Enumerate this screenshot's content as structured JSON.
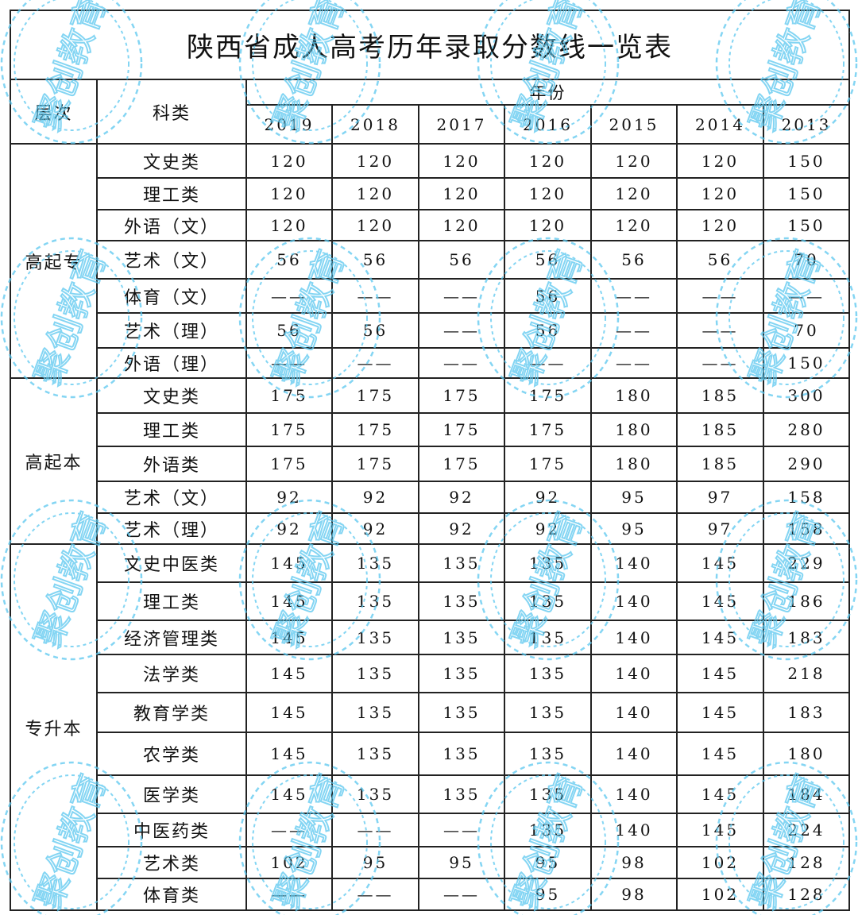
{
  "title": "陕西省成人高考历年录取分数线一览表",
  "header": {
    "level": "层次",
    "subject": "科类",
    "year_group": "年份",
    "years": [
      "2019",
      "2018",
      "2017",
      "2016",
      "2015",
      "2014",
      "2013"
    ]
  },
  "groups": [
    {
      "level": "高起专",
      "rows": [
        {
          "subject": "文史类",
          "values": [
            "120",
            "120",
            "120",
            "120",
            "120",
            "120",
            "150"
          ]
        },
        {
          "subject": "理工类",
          "values": [
            "120",
            "120",
            "120",
            "120",
            "120",
            "120",
            "150"
          ]
        },
        {
          "subject": "外语（文）",
          "values": [
            "120",
            "120",
            "120",
            "120",
            "120",
            "120",
            "150"
          ]
        },
        {
          "subject": "艺术（文）",
          "values": [
            "56",
            "56",
            "56",
            "56",
            "56",
            "56",
            "70"
          ]
        },
        {
          "subject": "体育（文）",
          "values": [
            "——",
            "——",
            "——",
            "56",
            "——",
            "——",
            "——"
          ]
        },
        {
          "subject": "艺术（理）",
          "values": [
            "56",
            "56",
            "——",
            "56",
            "——",
            "——",
            "70"
          ]
        },
        {
          "subject": "外语（理）",
          "values": [
            "——",
            "——",
            "——",
            "——",
            "——",
            "——",
            "150"
          ]
        }
      ]
    },
    {
      "level": "高起本",
      "rows": [
        {
          "subject": "文史类",
          "values": [
            "175",
            "175",
            "175",
            "175",
            "180",
            "185",
            "300"
          ]
        },
        {
          "subject": "理工类",
          "values": [
            "175",
            "175",
            "175",
            "175",
            "180",
            "185",
            "280"
          ]
        },
        {
          "subject": "外语类",
          "values": [
            "175",
            "175",
            "175",
            "175",
            "180",
            "185",
            "290"
          ]
        },
        {
          "subject": "艺术（文）",
          "values": [
            "92",
            "92",
            "92",
            "92",
            "95",
            "97",
            "158"
          ]
        },
        {
          "subject": "艺术（理）",
          "values": [
            "92",
            "92",
            "92",
            "92",
            "95",
            "97",
            "158"
          ]
        }
      ]
    },
    {
      "level": "专升本",
      "rows": [
        {
          "subject": "文史中医类",
          "values": [
            "145",
            "135",
            "135",
            "135",
            "140",
            "145",
            "229"
          ]
        },
        {
          "subject": "理工类",
          "values": [
            "145",
            "135",
            "135",
            "135",
            "140",
            "145",
            "186"
          ]
        },
        {
          "subject": "经济管理类",
          "values": [
            "145",
            "135",
            "135",
            "135",
            "140",
            "145",
            "183"
          ]
        },
        {
          "subject": "法学类",
          "values": [
            "145",
            "135",
            "135",
            "135",
            "140",
            "145",
            "218"
          ]
        },
        {
          "subject": "教育学类",
          "values": [
            "145",
            "135",
            "135",
            "135",
            "140",
            "145",
            "183"
          ]
        },
        {
          "subject": "农学类",
          "values": [
            "145",
            "135",
            "135",
            "135",
            "140",
            "145",
            "180"
          ]
        },
        {
          "subject": "医学类",
          "values": [
            "145",
            "135",
            "135",
            "135",
            "140",
            "145",
            "184"
          ]
        },
        {
          "subject": "中医药类",
          "values": [
            "——",
            "——",
            "——",
            "135",
            "140",
            "145",
            "224"
          ]
        },
        {
          "subject": "艺术类",
          "values": [
            "102",
            "95",
            "95",
            "95",
            "98",
            "102",
            "128"
          ]
        },
        {
          "subject": "体育类",
          "values": [
            "——",
            "——",
            "——",
            "95",
            "98",
            "102",
            "128"
          ]
        }
      ]
    }
  ],
  "watermark": {
    "text": "聚创教育",
    "color": "#5cc8ef"
  }
}
